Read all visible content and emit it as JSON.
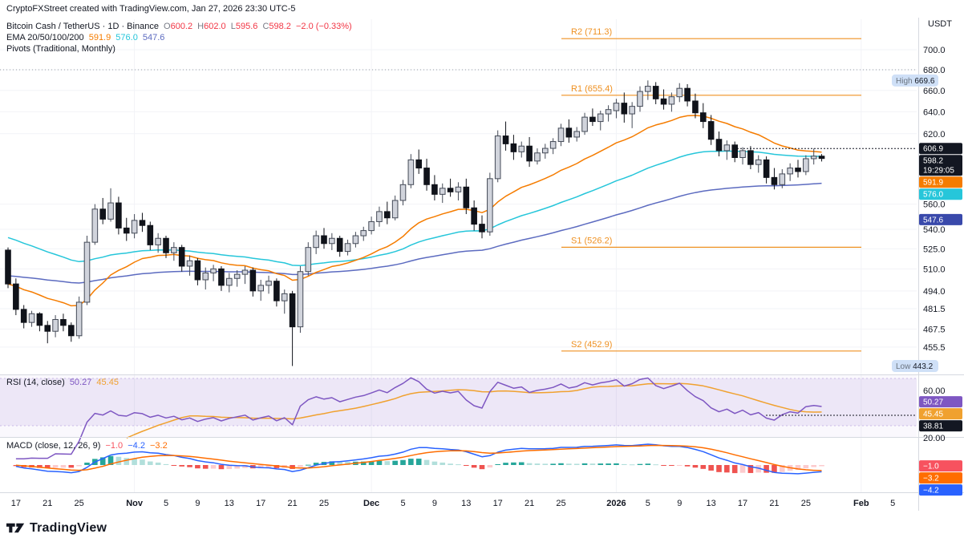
{
  "header": {
    "left": "CryptoFXStreet created with TradingView.com, Jan 27, 2026 23:30 UTC-5",
    "currency": "USDT"
  },
  "legend": {
    "title": "Bitcoin Cash / TetherUS · 1D · Binance",
    "ohlc": [
      {
        "label": "O",
        "value": "600.2"
      },
      {
        "label": "H",
        "value": "602.0"
      },
      {
        "label": "L",
        "value": "595.6"
      },
      {
        "label": "C",
        "value": "598.2"
      }
    ],
    "change": "−2.0 (−0.33%)",
    "ema": {
      "label": "EMA 20/50/100/200",
      "values": [
        "591.9",
        "576.0",
        "547.6"
      ]
    },
    "pivots_label": "Pivots (Traditional, Monthly)"
  },
  "rsi_legend": {
    "label": "RSI (14, close)",
    "value1": "50.27",
    "value2": "45.45"
  },
  "macd_legend": {
    "label": "MACD (close, 12, 26, 9)",
    "value1": "−1.0",
    "value2": "−4.2",
    "value3": "−3.2"
  },
  "footer": {
    "brand": "TradingView"
  },
  "chart_data": {
    "type": "candlestick",
    "title": "Bitcoin Cash / TetherUS",
    "interval": "1D",
    "exchange": "Binance",
    "quote_currency": "USDT",
    "last": {
      "open": 600.2,
      "high": 602.0,
      "low": 595.6,
      "close": 598.2,
      "change": -2.0,
      "change_pct": -0.33
    },
    "countdown": "19:29:05",
    "price_line": 606.9,
    "dashed_gridline": 680.0,
    "high_label": 669.6,
    "low_label": 443.2,
    "pivots": [
      {
        "name": "R2",
        "value": 711.3,
        "label": "R2 (711.3)"
      },
      {
        "name": "R1",
        "value": 655.4,
        "label": "R1 (655.4)"
      },
      {
        "name": "S1",
        "value": 526.2,
        "label": "S1 (526.2)"
      },
      {
        "name": "S2",
        "value": 452.9,
        "label": "S2 (452.9)"
      }
    ],
    "emas": [
      {
        "period": 20,
        "value": 591.9
      },
      {
        "period": 50,
        "value": 576.0
      },
      {
        "period": 100,
        "value": 547.6
      }
    ],
    "axis_ticks": [
      {
        "value": 700,
        "label": "700.0"
      },
      {
        "value": 680,
        "label": "680.0"
      },
      {
        "value": 660,
        "label": "660.0"
      },
      {
        "value": 640,
        "label": "640.0"
      },
      {
        "value": 620,
        "label": "620.0"
      },
      {
        "value": 560,
        "label": "560.0"
      },
      {
        "value": 540,
        "label": "540.0"
      },
      {
        "value": 525,
        "label": "525.0"
      },
      {
        "value": 510,
        "label": "510.0"
      },
      {
        "value": 494,
        "label": "494.0"
      },
      {
        "value": 481.5,
        "label": "481.5"
      },
      {
        "value": 467.5,
        "label": "467.5"
      },
      {
        "value": 455.5,
        "label": "455.5"
      }
    ],
    "price_badges": [
      {
        "value": 669.6,
        "label": "669.6",
        "prefix": "High",
        "pill": true,
        "bg": "#cfe0f7",
        "fg": "#131722"
      },
      {
        "value": 606.9,
        "label": "606.9",
        "bg": "#131722",
        "fg": "#ffffff"
      },
      {
        "value": 598.2,
        "label": "598.2",
        "sub": "19:29:05",
        "bg": "#131722",
        "fg": "#ffffff"
      },
      {
        "value": 591.9,
        "label": "591.9",
        "bg": "#f57c00",
        "fg": "#ffffff"
      },
      {
        "value": 576.0,
        "label": "576.0",
        "bg": "#26c6da",
        "fg": "#ffffff"
      },
      {
        "value": 547.6,
        "label": "547.6",
        "bg": "#3949ab",
        "fg": "#ffffff"
      },
      {
        "value": 443.2,
        "label": "443.2",
        "prefix": "Low",
        "pill": true,
        "bg": "#cfe0f7",
        "fg": "#131722"
      }
    ],
    "rsi": {
      "band": [
        30,
        70
      ],
      "ticks": [
        {
          "value": 60,
          "label": "60.00"
        },
        {
          "value": 20,
          "label": "20.00"
        }
      ],
      "badges": [
        {
          "value": 50.27,
          "label": "50.27",
          "bg": "#7e57c2",
          "fg": "#ffffff"
        },
        {
          "value": 45.45,
          "label": "45.45",
          "bg": "#f0a12f",
          "fg": "#ffffff"
        },
        {
          "value": 38.81,
          "label": "38.81",
          "bg": "#131722",
          "fg": "#ffffff"
        }
      ],
      "dotted_level": 38.81
    },
    "macd": {
      "badges": [
        {
          "value": -1.0,
          "label": "−1.0",
          "bg": "#f7525f",
          "fg": "#ffffff"
        },
        {
          "value": -3.2,
          "label": "−3.2",
          "bg": "#ff6d00",
          "fg": "#ffffff"
        },
        {
          "value": -4.2,
          "label": "−4.2",
          "bg": "#2962ff",
          "fg": "#ffffff"
        }
      ]
    },
    "time_labels": [
      {
        "i": 1,
        "label": "17"
      },
      {
        "i": 5,
        "label": "21"
      },
      {
        "i": 9,
        "label": "25"
      },
      {
        "i": 16,
        "label": "Nov",
        "major": true
      },
      {
        "i": 20,
        "label": "5"
      },
      {
        "i": 24,
        "label": "9"
      },
      {
        "i": 28,
        "label": "13"
      },
      {
        "i": 32,
        "label": "17"
      },
      {
        "i": 36,
        "label": "21"
      },
      {
        "i": 40,
        "label": "25"
      },
      {
        "i": 46,
        "label": "Dec",
        "major": true
      },
      {
        "i": 50,
        "label": "5"
      },
      {
        "i": 54,
        "label": "9"
      },
      {
        "i": 58,
        "label": "13"
      },
      {
        "i": 62,
        "label": "17"
      },
      {
        "i": 66,
        "label": "21"
      },
      {
        "i": 70,
        "label": "25"
      },
      {
        "i": 77,
        "label": "2026",
        "major": true
      },
      {
        "i": 81,
        "label": "5"
      },
      {
        "i": 85,
        "label": "9"
      },
      {
        "i": 89,
        "label": "13"
      },
      {
        "i": 93,
        "label": "17"
      },
      {
        "i": 97,
        "label": "21"
      },
      {
        "i": 101,
        "label": "25"
      },
      {
        "i": 108,
        "label": "Feb",
        "major": true
      },
      {
        "i": 112,
        "label": "5"
      }
    ],
    "candles_columns": [
      "date",
      "open",
      "high",
      "low",
      "close"
    ],
    "candles": [
      [
        "Oct 16",
        524,
        526,
        496,
        499
      ],
      [
        "Oct 17",
        499,
        503,
        477,
        481
      ],
      [
        "Oct 18",
        481,
        484,
        468,
        472
      ],
      [
        "Oct 19",
        472,
        480,
        469,
        478
      ],
      [
        "Oct 20",
        478,
        479,
        466,
        470
      ],
      [
        "Oct 21",
        470,
        473,
        458,
        466
      ],
      [
        "Oct 22",
        466,
        477,
        462,
        474
      ],
      [
        "Oct 23",
        474,
        478,
        466,
        470
      ],
      [
        "Oct 24",
        470,
        472,
        459,
        463
      ],
      [
        "Oct 25",
        463,
        490,
        461,
        486
      ],
      [
        "Oct 26",
        486,
        535,
        484,
        530
      ],
      [
        "Oct 27",
        530,
        560,
        528,
        556
      ],
      [
        "Oct 28",
        556,
        565,
        544,
        548
      ],
      [
        "Oct 29",
        548,
        573,
        546,
        561
      ],
      [
        "Oct 30",
        561,
        566,
        536,
        541
      ],
      [
        "Oct 31",
        541,
        549,
        531,
        537
      ],
      [
        "Nov 1",
        537,
        552,
        533,
        547
      ],
      [
        "Nov 2",
        547,
        553,
        538,
        543
      ],
      [
        "Nov 3",
        543,
        546,
        524,
        528
      ],
      [
        "Nov 4",
        528,
        537,
        522,
        533
      ],
      [
        "Nov 5",
        533,
        535,
        518,
        522
      ],
      [
        "Nov 6",
        522,
        530,
        516,
        526
      ],
      [
        "Nov 7",
        526,
        528,
        508,
        512
      ],
      [
        "Nov 8",
        512,
        520,
        505,
        516
      ],
      [
        "Nov 9",
        516,
        518,
        498,
        502
      ],
      [
        "Nov 10",
        502,
        511,
        495,
        507
      ],
      [
        "Nov 11",
        507,
        513,
        501,
        510
      ],
      [
        "Nov 12",
        510,
        512,
        494,
        498
      ],
      [
        "Nov 13",
        498,
        507,
        493,
        503
      ],
      [
        "Nov 14",
        503,
        509,
        497,
        506
      ],
      [
        "Nov 15",
        506,
        512,
        499,
        509
      ],
      [
        "Nov 16",
        509,
        511,
        490,
        494
      ],
      [
        "Nov 17",
        494,
        502,
        487,
        498
      ],
      [
        "Nov 18",
        498,
        505,
        492,
        501
      ],
      [
        "Nov 19",
        501,
        503,
        483,
        487
      ],
      [
        "Nov 20",
        487,
        495,
        478,
        492
      ],
      [
        "Nov 21",
        492,
        494,
        443.2,
        469
      ],
      [
        "Nov 22",
        469,
        512,
        465,
        508
      ],
      [
        "Nov 23",
        508,
        530,
        505,
        526
      ],
      [
        "Nov 24",
        526,
        539,
        521,
        535
      ],
      [
        "Nov 25",
        535,
        541,
        525,
        529
      ],
      [
        "Nov 26",
        529,
        537,
        524,
        533
      ],
      [
        "Nov 27",
        533,
        535,
        519,
        523
      ],
      [
        "Nov 28",
        523,
        532,
        520,
        529
      ],
      [
        "Nov 29",
        529,
        538,
        526,
        535
      ],
      [
        "Nov 30",
        535,
        542,
        531,
        539
      ],
      [
        "Dec 1",
        539,
        550,
        536,
        546
      ],
      [
        "Dec 2",
        546,
        558,
        542,
        554
      ],
      [
        "Dec 3",
        554,
        562,
        544,
        549
      ],
      [
        "Dec 4",
        549,
        567,
        547,
        563
      ],
      [
        "Dec 5",
        563,
        580,
        559,
        576
      ],
      [
        "Dec 6",
        576,
        602,
        573,
        597
      ],
      [
        "Dec 7",
        597,
        606,
        585,
        590
      ],
      [
        "Dec 8",
        590,
        598,
        571,
        576
      ],
      [
        "Dec 9",
        576,
        584,
        563,
        568
      ],
      [
        "Dec 10",
        568,
        577,
        561,
        573
      ],
      [
        "Dec 11",
        573,
        581,
        566,
        570
      ],
      [
        "Dec 12",
        570,
        578,
        563,
        574
      ],
      [
        "Dec 13",
        574,
        581,
        552,
        557
      ],
      [
        "Dec 14",
        557,
        563,
        539,
        544
      ],
      [
        "Dec 15",
        544,
        551,
        533,
        538
      ],
      [
        "Dec 16",
        538,
        586,
        535,
        581
      ],
      [
        "Dec 17",
        581,
        623,
        578,
        618
      ],
      [
        "Dec 18",
        618,
        631,
        605,
        611
      ],
      [
        "Dec 19",
        611,
        619,
        597,
        604
      ],
      [
        "Dec 20",
        604,
        613,
        599,
        609
      ],
      [
        "Dec 21",
        609,
        617,
        591,
        596
      ],
      [
        "Dec 22",
        596,
        607,
        593,
        603
      ],
      [
        "Dec 23",
        603,
        611,
        598,
        607
      ],
      [
        "Dec 24",
        607,
        616,
        602,
        613
      ],
      [
        "Dec 25",
        613,
        629,
        609,
        625
      ],
      [
        "Dec 26",
        625,
        633,
        612,
        617
      ],
      [
        "Dec 27",
        617,
        626,
        613,
        622
      ],
      [
        "Dec 28",
        622,
        639,
        619,
        635
      ],
      [
        "Dec 29",
        635,
        643,
        627,
        631
      ],
      [
        "Dec 30",
        631,
        641,
        623,
        638
      ],
      [
        "Dec 31",
        638,
        646,
        631,
        642
      ],
      [
        "Jan 1",
        641,
        652,
        634,
        648
      ],
      [
        "Jan 2",
        648,
        658,
        630,
        638
      ],
      [
        "Jan 3",
        638,
        649,
        625,
        645
      ],
      [
        "Jan 4",
        645,
        664,
        640,
        659
      ],
      [
        "Jan 5",
        659,
        669.6,
        651,
        664
      ],
      [
        "Jan 6",
        664,
        668,
        647,
        652
      ],
      [
        "Jan 7",
        652,
        661,
        642,
        647
      ],
      [
        "Jan 8",
        647,
        658,
        640,
        654
      ],
      [
        "Jan 9",
        654,
        667,
        649,
        662
      ],
      [
        "Jan 10",
        662,
        666,
        645,
        650
      ],
      [
        "Jan 11",
        650,
        657,
        634,
        639
      ],
      [
        "Jan 12",
        639,
        648,
        625,
        631
      ],
      [
        "Jan 13",
        631,
        637,
        610,
        615
      ],
      [
        "Jan 14",
        615,
        622,
        600,
        605
      ],
      [
        "Jan 15",
        605,
        614,
        597,
        610
      ],
      [
        "Jan 16",
        610,
        613,
        595,
        599
      ],
      [
        "Jan 17",
        599,
        608,
        593,
        605
      ],
      [
        "Jan 18",
        605,
        609,
        589,
        593
      ],
      [
        "Jan 19",
        593,
        601,
        586,
        597
      ],
      [
        "Jan 20",
        597,
        600,
        577,
        582
      ],
      [
        "Jan 21",
        582,
        590,
        572,
        576
      ],
      [
        "Jan 22",
        576,
        589,
        573,
        585
      ],
      [
        "Jan 23",
        585,
        594,
        579,
        590
      ],
      [
        "Jan 24",
        590,
        597,
        582,
        587
      ],
      [
        "Jan 25",
        587,
        601,
        584,
        598
      ],
      [
        "Jan 26",
        598,
        606.9,
        593,
        600.2
      ],
      [
        "Jan 27",
        600.2,
        602,
        595.6,
        598.2
      ]
    ],
    "colors": {
      "candle_up_fill": "#d1d4dc",
      "candle_up_stroke": "#444a57",
      "candle_down": "#10131a",
      "ema20": "#f57c00",
      "ema50": "#26c6da",
      "ema100": "#5c6bc0",
      "pivot": "#ef9122",
      "rsi_line": "#7e57c2",
      "rsi_ma": "#f0a12f",
      "rsi_band_fill": "rgba(126,87,194,0.10)",
      "macd_line": "#2962ff",
      "macd_signal": "#ff6d00",
      "hist_pos": "#26a69a",
      "hist_pos_weak": "#b2dfdb",
      "hist_neg": "#ef5350",
      "hist_neg_weak": "#fccbcd",
      "grid": "#f2f3f7",
      "divider": "#d6d9e0",
      "axis_text": "#131722"
    }
  }
}
